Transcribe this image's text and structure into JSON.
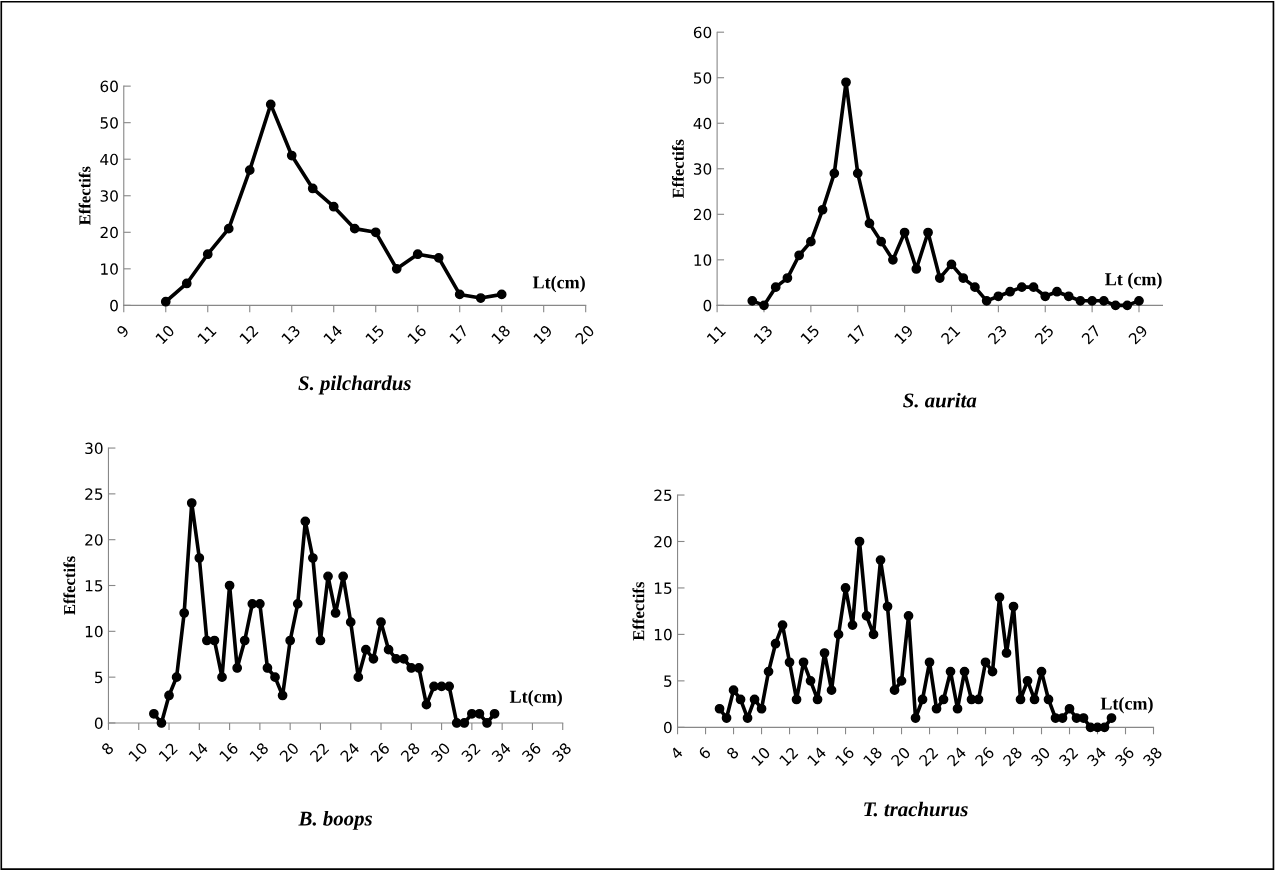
{
  "chart_data": [
    {
      "type": "line",
      "title": "S. pilchardus",
      "ylabel": "Effectifs",
      "annotations": [
        "Lt(cm)"
      ],
      "color": "#000000",
      "marker": "circle",
      "line_style": "solid",
      "grid": false,
      "x": [
        10,
        10.5,
        11,
        11.5,
        12,
        12.5,
        13,
        13.5,
        14,
        14.5,
        15,
        15.5,
        16,
        16.5,
        17,
        17.5,
        18
      ],
      "values": [
        1,
        6,
        14,
        21,
        37,
        55,
        41,
        32,
        27,
        21,
        20,
        10,
        14,
        13,
        3,
        2,
        3
      ],
      "xlim": [
        9,
        20
      ],
      "xticks": [
        9,
        10,
        11,
        12,
        13,
        14,
        15,
        16,
        17,
        18,
        19,
        20
      ],
      "ylim": [
        0,
        60
      ],
      "yticks": [
        0,
        10,
        20,
        30,
        40,
        50,
        60
      ]
    },
    {
      "type": "line",
      "title": "S. aurita",
      "ylabel": "Effectifs",
      "annotations": [
        "Lt (cm)"
      ],
      "color": "#000000",
      "marker": "circle",
      "line_style": "solid",
      "grid": false,
      "x": [
        12.5,
        13,
        13.5,
        14,
        14.5,
        15,
        15.5,
        16,
        16.5,
        17,
        17.5,
        18,
        18.5,
        19,
        19.5,
        20,
        20.5,
        21,
        21.5,
        22,
        22.5,
        23,
        23.5,
        24,
        24.5,
        25,
        25.5,
        26,
        26.5,
        27,
        27.5,
        28,
        28.5,
        29
      ],
      "values": [
        1,
        0,
        4,
        6,
        11,
        14,
        21,
        29,
        49,
        29,
        18,
        14,
        10,
        16,
        8,
        16,
        6,
        9,
        6,
        4,
        1,
        2,
        3,
        4,
        4,
        2,
        3,
        2,
        1,
        1,
        1,
        0,
        0,
        1
      ],
      "xlim": [
        11,
        30
      ],
      "xticks": [
        11,
        13,
        15,
        17,
        19,
        21,
        23,
        25,
        27,
        29
      ],
      "ylim": [
        0,
        60
      ],
      "yticks": [
        0,
        10,
        20,
        30,
        40,
        50,
        60
      ]
    },
    {
      "type": "line",
      "title": "B. boops",
      "ylabel": "Effectifs",
      "annotations": [
        "Lt(cm)"
      ],
      "color": "#000000",
      "marker": "circle",
      "line_style": "solid",
      "grid": false,
      "x": [
        11,
        11.5,
        12,
        12.5,
        13,
        13.5,
        14,
        14.5,
        15,
        15.5,
        16,
        16.5,
        17,
        17.5,
        18,
        18.5,
        19,
        19.5,
        20,
        20.5,
        21,
        21.5,
        22,
        22.5,
        23,
        23.5,
        24,
        24.5,
        25,
        25.5,
        26,
        26.5,
        27,
        27.5,
        28,
        28.5,
        29,
        29.5,
        30,
        30.5,
        31,
        31.5,
        32,
        32.5,
        33,
        33.5
      ],
      "values": [
        1,
        0,
        3,
        5,
        12,
        24,
        18,
        9,
        9,
        5,
        15,
        6,
        9,
        13,
        13,
        6,
        5,
        3,
        9,
        13,
        22,
        18,
        9,
        16,
        12,
        16,
        11,
        5,
        8,
        7,
        11,
        8,
        7,
        7,
        6,
        6,
        2,
        4,
        4,
        4,
        0,
        0,
        1,
        1,
        0,
        1
      ],
      "xlim": [
        8,
        38
      ],
      "xticks": [
        8,
        10,
        12,
        14,
        16,
        18,
        20,
        22,
        24,
        26,
        28,
        30,
        32,
        34,
        36,
        38
      ],
      "ylim": [
        0,
        30
      ],
      "yticks": [
        0,
        5,
        10,
        15,
        20,
        25,
        30
      ]
    },
    {
      "type": "line",
      "title": "T. trachurus",
      "ylabel": "Effectifs",
      "annotations": [
        "Lt(cm)"
      ],
      "color": "#000000",
      "marker": "circle",
      "line_style": "solid",
      "grid": false,
      "x": [
        7,
        7.5,
        8,
        8.5,
        9,
        9.5,
        10,
        10.5,
        11,
        11.5,
        12,
        12.5,
        13,
        13.5,
        14,
        14.5,
        15,
        15.5,
        16,
        16.5,
        17,
        17.5,
        18,
        18.5,
        19,
        19.5,
        20,
        20.5,
        21,
        21.5,
        22,
        22.5,
        23,
        23.5,
        24,
        24.5,
        25,
        25.5,
        26,
        26.5,
        27,
        27.5,
        28,
        28.5,
        29,
        29.5,
        30,
        30.5,
        31,
        31.5,
        32,
        32.5,
        33,
        33.5,
        34,
        34.5,
        35
      ],
      "values": [
        2,
        1,
        4,
        3,
        1,
        3,
        2,
        6,
        9,
        11,
        7,
        3,
        7,
        5,
        3,
        8,
        4,
        10,
        15,
        11,
        20,
        12,
        10,
        18,
        13,
        4,
        5,
        12,
        1,
        3,
        7,
        2,
        3,
        6,
        2,
        6,
        3,
        3,
        7,
        6,
        14,
        8,
        13,
        3,
        5,
        3,
        6,
        3,
        1,
        1,
        2,
        1,
        1,
        0,
        0,
        0,
        1
      ],
      "xlim": [
        4,
        38
      ],
      "xticks": [
        4,
        6,
        8,
        10,
        12,
        14,
        16,
        18,
        20,
        22,
        24,
        26,
        28,
        30,
        32,
        34,
        36,
        38
      ],
      "ylim": [
        0,
        25
      ],
      "yticks": [
        0,
        5,
        10,
        15,
        20,
        25
      ]
    }
  ]
}
